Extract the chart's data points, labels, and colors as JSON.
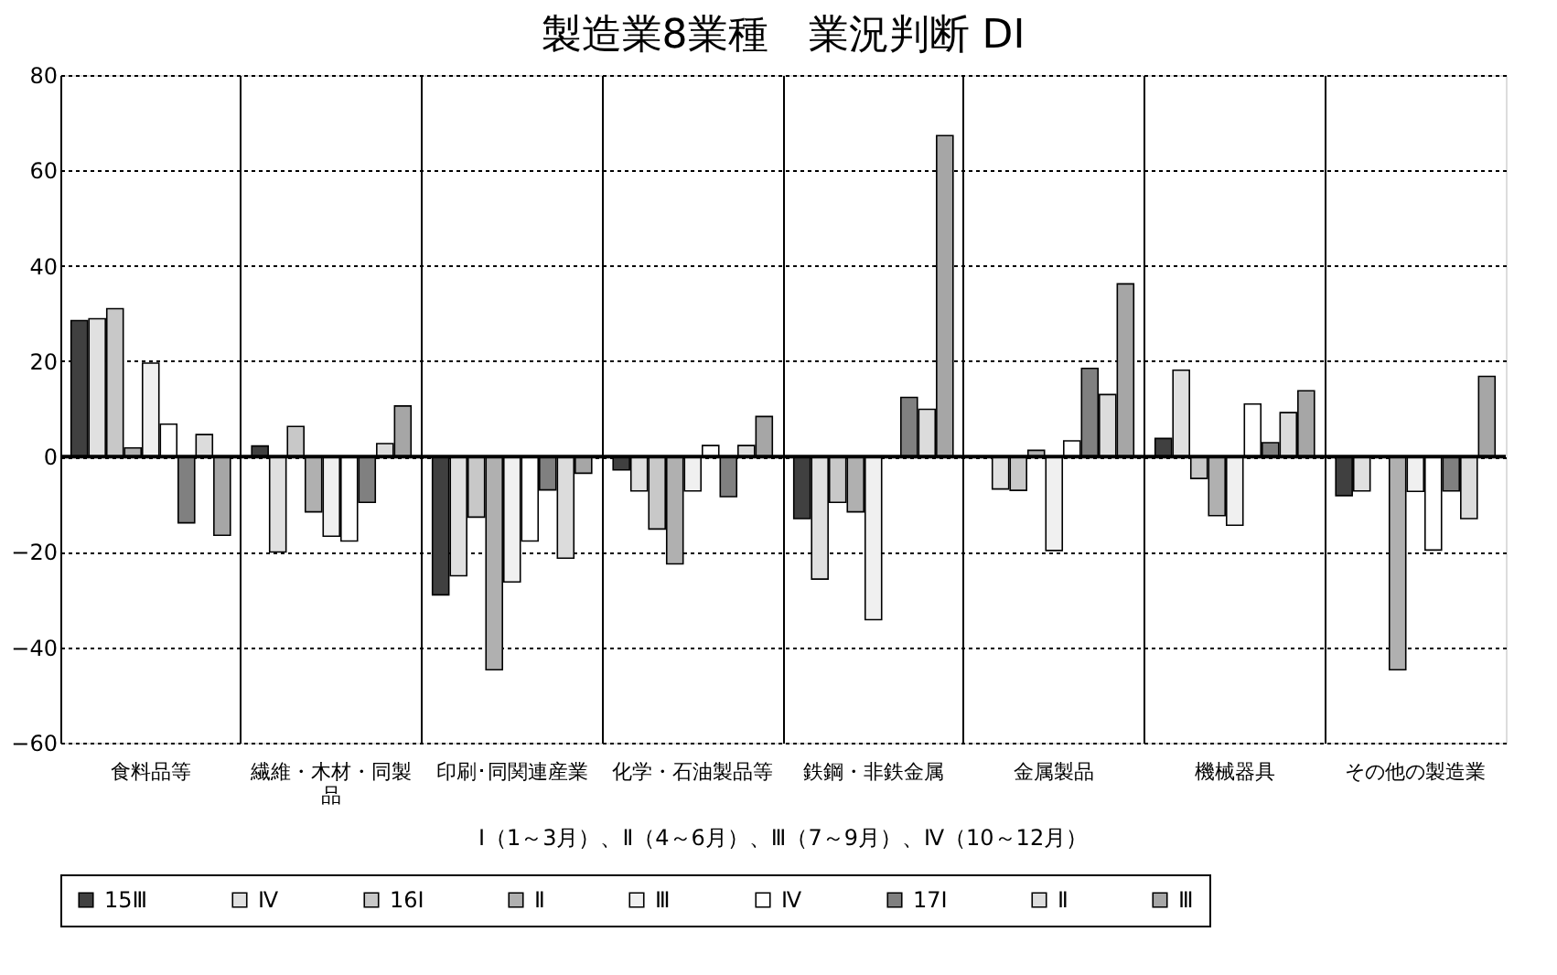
{
  "chart_data": {
    "type": "bar",
    "title": "製造業8業種　業況判断 DI",
    "categories": [
      "食料品等",
      "繊維・木材・同製品",
      "印刷･同関連産業",
      "化学・石油製品等",
      "鉄鋼・非鉄金属",
      "金属製品",
      "機械器具",
      "その他の製造業"
    ],
    "series": [
      {
        "name": "15Ⅲ",
        "color": "#404040",
        "values": [
          28.5,
          2.2,
          -29,
          -2.8,
          -13,
          null,
          3.8,
          -8.2
        ]
      },
      {
        "name": "Ⅳ",
        "color": "#e0e0e0",
        "values": [
          28.9,
          -20,
          -25,
          -7.2,
          -25.7,
          -6.8,
          18.1,
          -7.2
        ]
      },
      {
        "name": "16Ⅰ",
        "color": "#c8c8c8",
        "values": [
          31,
          6.3,
          -12.7,
          -15.2,
          -9.6,
          -7.1,
          -4.6,
          null
        ]
      },
      {
        "name": "Ⅱ",
        "color": "#b0b0b0",
        "values": [
          1.8,
          -11.6,
          -44.7,
          -22.5,
          -11.6,
          1.3,
          -12.4,
          -44.7
        ]
      },
      {
        "name": "Ⅲ",
        "color": "#f0f0f0",
        "values": [
          19.6,
          -16.7,
          -26.3,
          -7.2,
          -34.2,
          -19.7,
          -14.4,
          -7.3
        ]
      },
      {
        "name": "Ⅳ",
        "color": "#ffffff",
        "values": [
          6.8,
          -17.7,
          -17.7,
          2.3,
          null,
          3.3,
          11,
          -19.6
        ]
      },
      {
        "name": "17Ⅰ",
        "color": "#808080",
        "values": [
          -13.9,
          -9.6,
          -7,
          -8.4,
          12.4,
          18.5,
          2.9,
          -7.2
        ]
      },
      {
        "name": "Ⅱ",
        "color": "#dcdcdc",
        "values": [
          4.6,
          2.7,
          -21.3,
          2.3,
          9.9,
          13,
          9.2,
          -13
        ]
      },
      {
        "name": "Ⅲ",
        "color": "#a6a6a6",
        "values": [
          -16.5,
          10.6,
          -3.5,
          8.4,
          67.3,
          36.2,
          13.8,
          16.8
        ]
      }
    ],
    "ylim": [
      -60,
      80
    ],
    "yticks": [
      -60,
      -40,
      -20,
      0,
      20,
      40,
      60,
      80
    ],
    "grid": "y",
    "legend": "bottom",
    "ref_lines": [
      {
        "axis": "y",
        "value": 0
      }
    ],
    "annotations": [
      "Ⅰ（1～3月）、Ⅱ（4～6月）、Ⅲ（7～9月）、Ⅳ（10～12月）"
    ]
  }
}
